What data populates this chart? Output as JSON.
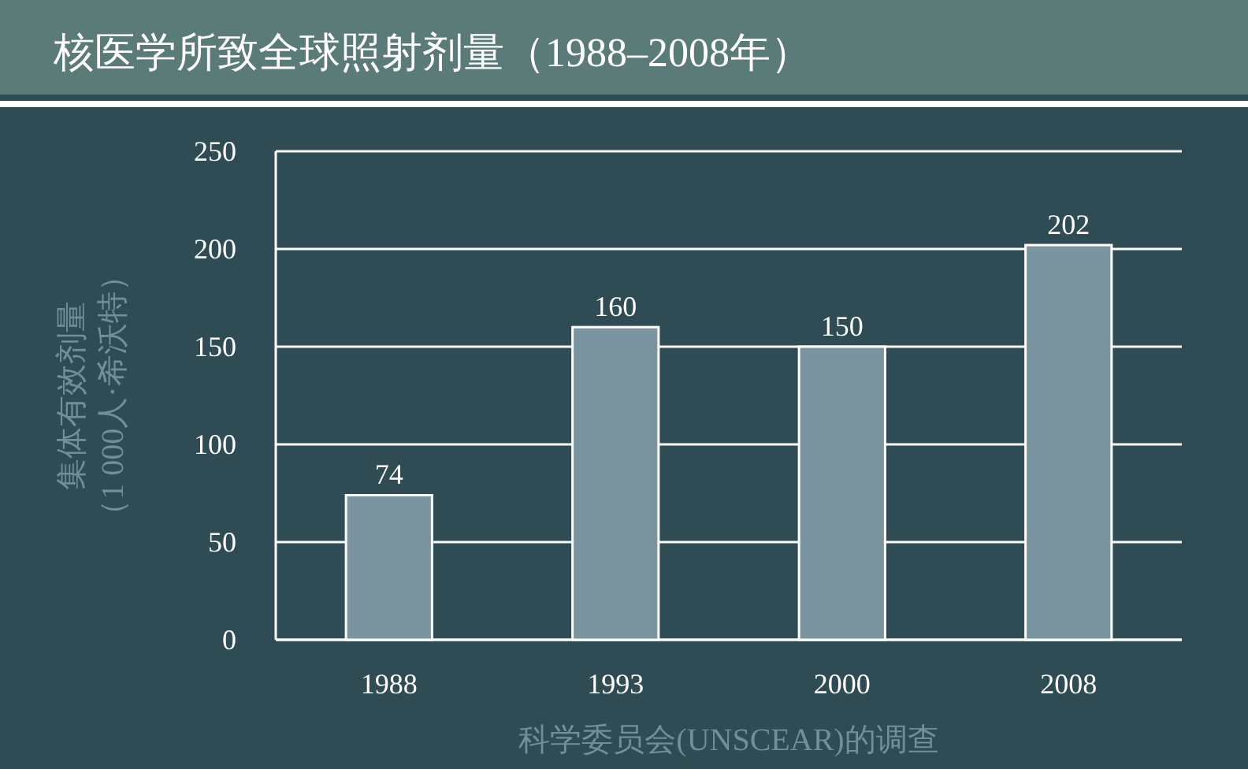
{
  "chart_data": {
    "type": "bar",
    "title": "核医学所致全球照射剂量（1988–2008年）",
    "xlabel": "科学委员会(UNSCEAR)的调查",
    "ylabel": "集体有效剂量（1 000人·希沃特）",
    "categories": [
      "1988",
      "1993",
      "2000",
      "2008"
    ],
    "values": [
      74,
      160,
      150,
      202
    ],
    "color": "#7a959f",
    "ylim": [
      0,
      250
    ],
    "yticks": [
      0,
      50,
      100,
      150,
      200,
      250
    ],
    "grid": "y",
    "data_labels": true
  }
}
